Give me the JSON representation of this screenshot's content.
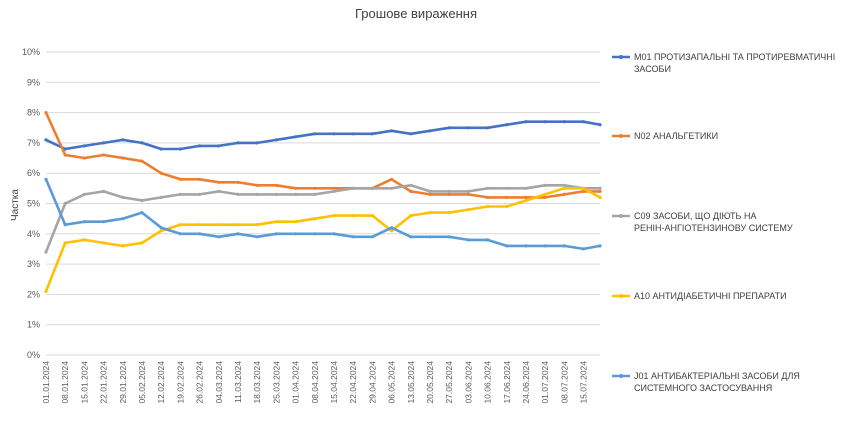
{
  "chart_data": {
    "type": "line",
    "title": "Грошове вираження",
    "ylabel": "Частка",
    "xlabel": "",
    "ylim": [
      0,
      10
    ],
    "y_ticks": [
      0,
      1,
      2,
      3,
      4,
      5,
      6,
      7,
      8,
      9,
      10
    ],
    "y_tick_labels": [
      "0%",
      "1%",
      "2%",
      "3%",
      "4%",
      "5%",
      "6%",
      "7%",
      "8%",
      "9%",
      "10%"
    ],
    "x_range": [
      "01.01.2024",
      "21.07.2024"
    ],
    "x_tick_labels": [
      "01.01.2024",
      "08.01.2024",
      "15.01.2024",
      "22.01.2024",
      "29.01.2024",
      "05.02.2024",
      "12.02.2024",
      "19.02.2024",
      "26.02.2024",
      "04.03.2024",
      "11.03.2024",
      "18.03.2024",
      "25.03.2024",
      "01.04.2024",
      "08.04.2024",
      "15.04.2024",
      "22.04.2024",
      "29.04.2024",
      "06.05.2024",
      "13.05.2024",
      "20.05.2024",
      "27.05.2024",
      "03.06.2024",
      "10.06.2024",
      "17.06.2024",
      "24.06.2024",
      "01.07.2024",
      "08.07.2024",
      "15.07.2024"
    ],
    "grid": true,
    "legend_position": "right",
    "series": [
      {
        "name": "M01 ПРОТИЗАПАЛЬНІ ТА ПРОТИРЕВМАТИЧНІ ЗАСОБИ",
        "color": "#4472C4",
        "x": [
          "01.01.2024",
          "08.01.2024",
          "15.01.2024",
          "22.01.2024",
          "29.01.2024",
          "05.02.2024",
          "12.02.2024",
          "19.02.2024",
          "26.02.2024",
          "04.03.2024",
          "11.03.2024",
          "18.03.2024",
          "25.03.2024",
          "01.04.2024",
          "08.04.2024",
          "15.04.2024",
          "22.04.2024",
          "29.04.2024",
          "06.05.2024",
          "13.05.2024",
          "20.05.2024",
          "27.05.2024",
          "03.06.2024",
          "10.06.2024",
          "17.06.2024",
          "24.06.2024",
          "01.07.2024",
          "08.07.2024",
          "15.07.2024",
          "21.07.2024"
        ],
        "values": [
          7.1,
          6.8,
          6.9,
          7.0,
          7.1,
          7.0,
          6.8,
          6.8,
          6.9,
          6.9,
          7.0,
          7.0,
          7.1,
          7.2,
          7.3,
          7.3,
          7.3,
          7.3,
          7.4,
          7.3,
          7.4,
          7.5,
          7.5,
          7.5,
          7.6,
          7.7,
          7.7,
          7.7,
          7.7,
          7.6
        ]
      },
      {
        "name": "N02 АНАЛЬГЕТИКИ",
        "color": "#ED7D31",
        "x": [
          "01.01.2024",
          "08.01.2024",
          "15.01.2024",
          "22.01.2024",
          "29.01.2024",
          "05.02.2024",
          "12.02.2024",
          "19.02.2024",
          "26.02.2024",
          "04.03.2024",
          "11.03.2024",
          "18.03.2024",
          "25.03.2024",
          "01.04.2024",
          "08.04.2024",
          "15.04.2024",
          "22.04.2024",
          "29.04.2024",
          "06.05.2024",
          "13.05.2024",
          "20.05.2024",
          "27.05.2024",
          "03.06.2024",
          "10.06.2024",
          "17.06.2024",
          "24.06.2024",
          "01.07.2024",
          "08.07.2024",
          "15.07.2024",
          "21.07.2024"
        ],
        "values": [
          8.0,
          6.6,
          6.5,
          6.6,
          6.5,
          6.4,
          6.0,
          5.8,
          5.8,
          5.7,
          5.7,
          5.6,
          5.6,
          5.5,
          5.5,
          5.5,
          5.5,
          5.5,
          5.8,
          5.4,
          5.3,
          5.3,
          5.3,
          5.2,
          5.2,
          5.2,
          5.2,
          5.3,
          5.4,
          5.4
        ]
      },
      {
        "name": "C09 ЗАСОБИ, ЩО ДІЮТЬ НА РЕНІН-АНГІОТЕНЗИНОВУ СИСТЕМУ",
        "color": "#A5A5A5",
        "x": [
          "01.01.2024",
          "08.01.2024",
          "15.01.2024",
          "22.01.2024",
          "29.01.2024",
          "05.02.2024",
          "12.02.2024",
          "19.02.2024",
          "26.02.2024",
          "04.03.2024",
          "11.03.2024",
          "18.03.2024",
          "25.03.2024",
          "01.04.2024",
          "08.04.2024",
          "15.04.2024",
          "22.04.2024",
          "29.04.2024",
          "06.05.2024",
          "13.05.2024",
          "20.05.2024",
          "27.05.2024",
          "03.06.2024",
          "10.06.2024",
          "17.06.2024",
          "24.06.2024",
          "01.07.2024",
          "08.07.2024",
          "15.07.2024",
          "21.07.2024"
        ],
        "values": [
          3.4,
          5.0,
          5.3,
          5.4,
          5.2,
          5.1,
          5.2,
          5.3,
          5.3,
          5.4,
          5.3,
          5.3,
          5.3,
          5.3,
          5.3,
          5.4,
          5.5,
          5.5,
          5.5,
          5.6,
          5.4,
          5.4,
          5.4,
          5.5,
          5.5,
          5.5,
          5.6,
          5.6,
          5.5,
          5.5
        ]
      },
      {
        "name": "A10 АНТИДІАБЕТИЧНІ ПРЕПАРАТИ",
        "color": "#FFC000",
        "x": [
          "01.01.2024",
          "08.01.2024",
          "15.01.2024",
          "22.01.2024",
          "29.01.2024",
          "05.02.2024",
          "12.02.2024",
          "19.02.2024",
          "26.02.2024",
          "04.03.2024",
          "11.03.2024",
          "18.03.2024",
          "25.03.2024",
          "01.04.2024",
          "08.04.2024",
          "15.04.2024",
          "22.04.2024",
          "29.04.2024",
          "06.05.2024",
          "13.05.2024",
          "20.05.2024",
          "27.05.2024",
          "03.06.2024",
          "10.06.2024",
          "17.06.2024",
          "24.06.2024",
          "01.07.2024",
          "08.07.2024",
          "15.07.2024",
          "21.07.2024"
        ],
        "values": [
          2.1,
          3.7,
          3.8,
          3.7,
          3.6,
          3.7,
          4.1,
          4.3,
          4.3,
          4.3,
          4.3,
          4.3,
          4.4,
          4.4,
          4.5,
          4.6,
          4.6,
          4.6,
          4.1,
          4.6,
          4.7,
          4.7,
          4.8,
          4.9,
          4.9,
          5.1,
          5.3,
          5.5,
          5.5,
          5.2
        ]
      },
      {
        "name": "J01 АНТИБАКТЕРІАЛЬНІ ЗАСОБИ ДЛЯ СИСТЕМНОГО ЗАСТОСУВАННЯ",
        "color": "#5B9BD5",
        "x": [
          "01.01.2024",
          "08.01.2024",
          "15.01.2024",
          "22.01.2024",
          "29.01.2024",
          "05.02.2024",
          "12.02.2024",
          "19.02.2024",
          "26.02.2024",
          "04.03.2024",
          "11.03.2024",
          "18.03.2024",
          "25.03.2024",
          "01.04.2024",
          "08.04.2024",
          "15.04.2024",
          "22.04.2024",
          "29.04.2024",
          "06.05.2024",
          "13.05.2024",
          "20.05.2024",
          "27.05.2024",
          "03.06.2024",
          "10.06.2024",
          "17.06.2024",
          "24.06.2024",
          "01.07.2024",
          "08.07.2024",
          "15.07.2024",
          "21.07.2024"
        ],
        "values": [
          5.8,
          4.3,
          4.4,
          4.4,
          4.5,
          4.7,
          4.2,
          4.0,
          4.0,
          3.9,
          4.0,
          3.9,
          4.0,
          4.0,
          4.0,
          4.0,
          3.9,
          3.9,
          4.2,
          3.9,
          3.9,
          3.9,
          3.8,
          3.8,
          3.6,
          3.6,
          3.6,
          3.6,
          3.5,
          3.6
        ]
      }
    ]
  }
}
